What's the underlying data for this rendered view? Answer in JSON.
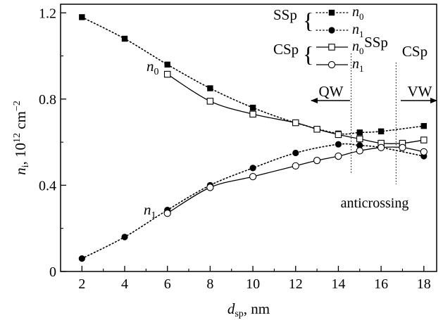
{
  "chart_data": {
    "type": "line",
    "xlabel_main": "d",
    "xlabel_sub": "sp",
    "xlabel_rest": ", nm",
    "ylabel_main": "n",
    "ylabel_sub": "i",
    "ylabel_rest": ", 10",
    "ylabel_exp": "12",
    "ylabel_unit": " cm",
    "ylabel_unit_exp": "−2",
    "xlim": [
      1,
      18.6
    ],
    "ylim": [
      0,
      1.24
    ],
    "xticks": [
      2,
      4,
      6,
      8,
      10,
      12,
      14,
      16,
      18
    ],
    "yticks": [
      0,
      0.4,
      0.8,
      1.2
    ],
    "ytick_labels": [
      "0",
      "0.4",
      "0.8",
      "1.2"
    ],
    "grid": false,
    "series": [
      {
        "group": "SSp",
        "label_main": "n",
        "label_sub": "0",
        "marker": "filled-square",
        "line": "dotted",
        "x": [
          2,
          4,
          6,
          8,
          10,
          12,
          14,
          15,
          16,
          18
        ],
        "y": [
          1.18,
          1.08,
          0.96,
          0.85,
          0.76,
          0.69,
          0.64,
          0.645,
          0.65,
          0.675
        ]
      },
      {
        "group": "SSp",
        "label_main": "n",
        "label_sub": "1",
        "marker": "filled-circle",
        "line": "dotted",
        "x": [
          2,
          4,
          6,
          8,
          10,
          12,
          14,
          15,
          16,
          18
        ],
        "y": [
          0.06,
          0.16,
          0.285,
          0.4,
          0.48,
          0.55,
          0.59,
          0.585,
          0.575,
          0.535
        ]
      },
      {
        "group": "CSp",
        "label_main": "n",
        "label_sub": "0",
        "marker": "open-square",
        "line": "solid",
        "x": [
          6,
          8,
          10,
          12,
          13,
          14,
          15,
          16,
          17,
          18
        ],
        "y": [
          0.915,
          0.79,
          0.73,
          0.69,
          0.66,
          0.635,
          0.615,
          0.595,
          0.595,
          0.61
        ]
      },
      {
        "group": "CSp",
        "label_main": "n",
        "label_sub": "1",
        "marker": "open-circle",
        "line": "solid",
        "x": [
          6,
          8,
          10,
          12,
          13,
          14,
          15,
          16,
          17,
          18
        ],
        "y": [
          0.27,
          0.39,
          0.44,
          0.49,
          0.515,
          0.535,
          0.56,
          0.575,
          0.575,
          0.555
        ]
      }
    ],
    "legend": {
      "position": "top-right",
      "group_ssp": "SSp",
      "group_csp": "CSp",
      "brace": "{"
    },
    "annotations": {
      "curve_n0_main": "n",
      "curve_n0_sub": "0",
      "curve_n1_main": "n",
      "curve_n1_sub": "1",
      "qw": "QW",
      "vw": "VW",
      "ssp": "SSp",
      "csp": "CSp",
      "anticrossing": "anticrossing",
      "ssp_line_x": 14.6,
      "csp_line_x": 16.7
    }
  }
}
